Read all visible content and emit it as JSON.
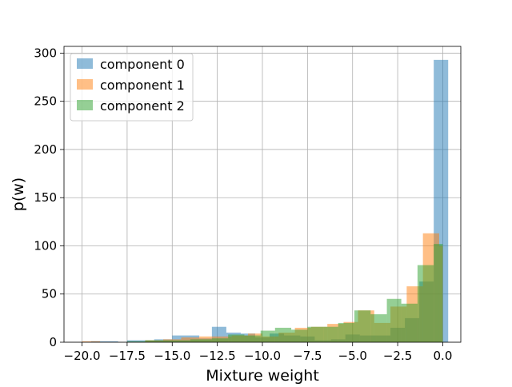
{
  "chart_data": {
    "type": "histogram",
    "title": "",
    "xlabel": "Mixture weight",
    "ylabel": "p(w)",
    "xlim": [
      -21.0,
      1.0
    ],
    "ylim": [
      0,
      307
    ],
    "xticks": [
      -20.0,
      -17.5,
      -15.0,
      -12.5,
      -10.0,
      -7.5,
      -5.0,
      -2.5,
      0.0
    ],
    "xtick_labels": [
      "−20.0",
      "−17.5",
      "−15.0",
      "−12.5",
      "−10.0",
      "−7.5",
      "−5.0",
      "−2.5",
      "0.0"
    ],
    "yticks": [
      0,
      50,
      100,
      150,
      200,
      250,
      300
    ],
    "ytick_labels": [
      "0",
      "50",
      "100",
      "150",
      "200",
      "250",
      "300"
    ],
    "grid": true,
    "legend_position": "upper-left",
    "bar_alpha": 0.5,
    "series": [
      {
        "name": "component 0",
        "color": "#1f77b4",
        "bins": [
          {
            "x0": -19.5,
            "x1": -18.0,
            "value": 1
          },
          {
            "x0": -17.5,
            "x1": -16.0,
            "value": 2
          },
          {
            "x0": -16.0,
            "x1": -15.0,
            "value": 3
          },
          {
            "x0": -15.0,
            "x1": -13.5,
            "value": 7
          },
          {
            "x0": -13.5,
            "x1": -12.8,
            "value": 4
          },
          {
            "x0": -12.8,
            "x1": -12.0,
            "value": 16
          },
          {
            "x0": -12.0,
            "x1": -11.2,
            "value": 10
          },
          {
            "x0": -11.2,
            "x1": -10.4,
            "value": 9
          },
          {
            "x0": -10.4,
            "x1": -9.6,
            "value": 5
          },
          {
            "x0": -9.6,
            "x1": -8.8,
            "value": 9
          },
          {
            "x0": -8.8,
            "x1": -7.9,
            "value": 7
          },
          {
            "x0": -7.9,
            "x1": -7.1,
            "value": 6
          },
          {
            "x0": -7.1,
            "x1": -6.2,
            "value": 2
          },
          {
            "x0": -6.2,
            "x1": -5.4,
            "value": 3
          },
          {
            "x0": -5.4,
            "x1": -4.6,
            "value": 8
          },
          {
            "x0": -4.6,
            "x1": -3.7,
            "value": 7
          },
          {
            "x0": -3.7,
            "x1": -2.9,
            "value": 7
          },
          {
            "x0": -2.9,
            "x1": -2.1,
            "value": 15
          },
          {
            "x0": -2.1,
            "x1": -1.3,
            "value": 25
          },
          {
            "x0": -1.3,
            "x1": -0.5,
            "value": 63
          },
          {
            "x0": -0.5,
            "x1": 0.3,
            "value": 293
          }
        ]
      },
      {
        "name": "component 1",
        "color": "#ff7f0e",
        "bins": [
          {
            "x0": -20.0,
            "x1": -19.0,
            "value": 1
          },
          {
            "x0": -16.5,
            "x1": -15.5,
            "value": 2
          },
          {
            "x0": -15.5,
            "x1": -14.5,
            "value": 3
          },
          {
            "x0": -14.5,
            "x1": -13.5,
            "value": 5
          },
          {
            "x0": -13.5,
            "x1": -12.6,
            "value": 6
          },
          {
            "x0": -12.6,
            "x1": -11.7,
            "value": 6
          },
          {
            "x0": -11.7,
            "x1": -10.8,
            "value": 7
          },
          {
            "x0": -10.8,
            "x1": -10.0,
            "value": 9
          },
          {
            "x0": -10.0,
            "x1": -9.1,
            "value": 6
          },
          {
            "x0": -9.1,
            "x1": -8.2,
            "value": 10
          },
          {
            "x0": -8.2,
            "x1": -7.3,
            "value": 15
          },
          {
            "x0": -7.3,
            "x1": -6.4,
            "value": 16
          },
          {
            "x0": -6.4,
            "x1": -5.5,
            "value": 19
          },
          {
            "x0": -5.5,
            "x1": -4.7,
            "value": 21
          },
          {
            "x0": -4.7,
            "x1": -3.8,
            "value": 33
          },
          {
            "x0": -3.8,
            "x1": -2.9,
            "value": 20
          },
          {
            "x0": -2.9,
            "x1": -2.0,
            "value": 37
          },
          {
            "x0": -2.0,
            "x1": -1.1,
            "value": 58
          },
          {
            "x0": -1.1,
            "x1": -0.2,
            "value": 113
          },
          {
            "x0": -0.2,
            "x1": 0.0,
            "value": 100
          }
        ]
      },
      {
        "name": "component 2",
        "color": "#2ca02c",
        "bins": [
          {
            "x0": -17.5,
            "x1": -16.5,
            "value": 1
          },
          {
            "x0": -16.5,
            "x1": -15.0,
            "value": 2
          },
          {
            "x0": -15.0,
            "x1": -14.0,
            "value": 2
          },
          {
            "x0": -14.0,
            "x1": -12.8,
            "value": 3
          },
          {
            "x0": -12.8,
            "x1": -11.9,
            "value": 4
          },
          {
            "x0": -11.9,
            "x1": -11.0,
            "value": 8
          },
          {
            "x0": -11.0,
            "x1": -10.1,
            "value": 7
          },
          {
            "x0": -10.1,
            "x1": -9.3,
            "value": 12
          },
          {
            "x0": -9.3,
            "x1": -8.4,
            "value": 15
          },
          {
            "x0": -8.4,
            "x1": -7.5,
            "value": 13
          },
          {
            "x0": -7.5,
            "x1": -6.6,
            "value": 16
          },
          {
            "x0": -6.6,
            "x1": -5.8,
            "value": 16
          },
          {
            "x0": -5.8,
            "x1": -4.9,
            "value": 20
          },
          {
            "x0": -4.9,
            "x1": -4.0,
            "value": 33
          },
          {
            "x0": -4.0,
            "x1": -3.1,
            "value": 29
          },
          {
            "x0": -3.1,
            "x1": -2.3,
            "value": 45
          },
          {
            "x0": -2.3,
            "x1": -1.4,
            "value": 40
          },
          {
            "x0": -1.4,
            "x1": -0.5,
            "value": 80
          },
          {
            "x0": -0.5,
            "x1": 0.0,
            "value": 102
          }
        ]
      }
    ]
  }
}
